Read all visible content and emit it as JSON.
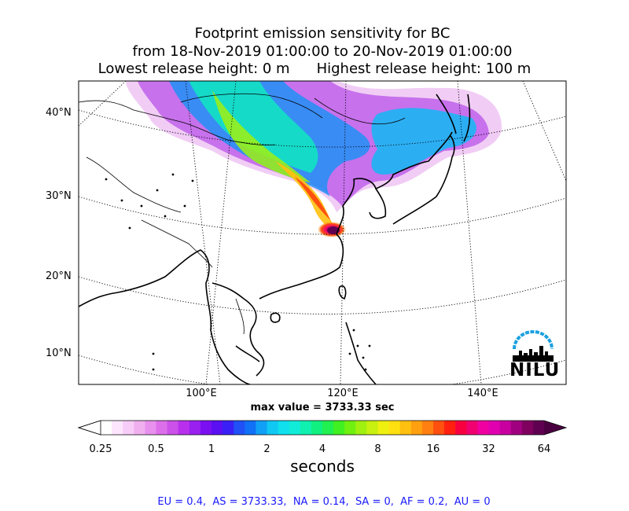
{
  "title": {
    "line1": "Footprint emission sensitivity for BC",
    "line2": "from 18-Nov-2019 01:00:00 to 20-Nov-2019 01:00:00",
    "line3_left": "Lowest release height: 0 m",
    "line3_right": "Highest release height: 100 m"
  },
  "map": {
    "lat_labels": [
      "40°N",
      "30°N",
      "20°N",
      "10°N"
    ],
    "lon_labels": [
      "100°E",
      "120°E",
      "140°E"
    ],
    "max_value_text": "max value = 3733.33 sec"
  },
  "colorbar": {
    "ticks": [
      "0.25",
      "0.5",
      "1",
      "2",
      "4",
      "8",
      "16",
      "32",
      "64"
    ],
    "unit_label": "seconds",
    "colors": [
      "#ffffff",
      "#fde6fd",
      "#f8ccf8",
      "#f0b0f0",
      "#e890ee",
      "#dd70ea",
      "#cc50ea",
      "#b830ee",
      "#9a20f0",
      "#7a10f2",
      "#5a10f2",
      "#3a20f6",
      "#2050f6",
      "#1070f6",
      "#10a0f6",
      "#10c8f4",
      "#10e0ee",
      "#10ecd8",
      "#10f0b0",
      "#10f080",
      "#20f050",
      "#40f020",
      "#70f010",
      "#a0f010",
      "#c8f010",
      "#eef010",
      "#fee010",
      "#ffc010",
      "#ffa010",
      "#ff8010",
      "#ff5010",
      "#ff2010",
      "#f80040",
      "#f00070",
      "#f000a0",
      "#e000b0",
      "#c800a0",
      "#a00080",
      "#800060",
      "#600050"
    ]
  },
  "footer": {
    "text": "EU = 0.4,  AS = 3733.33,  NA = 0.14,  SA = 0,  AF = 0.2,  AU = 0"
  },
  "logo": {
    "text": "NILU",
    "arc_color": "#1aa0e0"
  }
}
